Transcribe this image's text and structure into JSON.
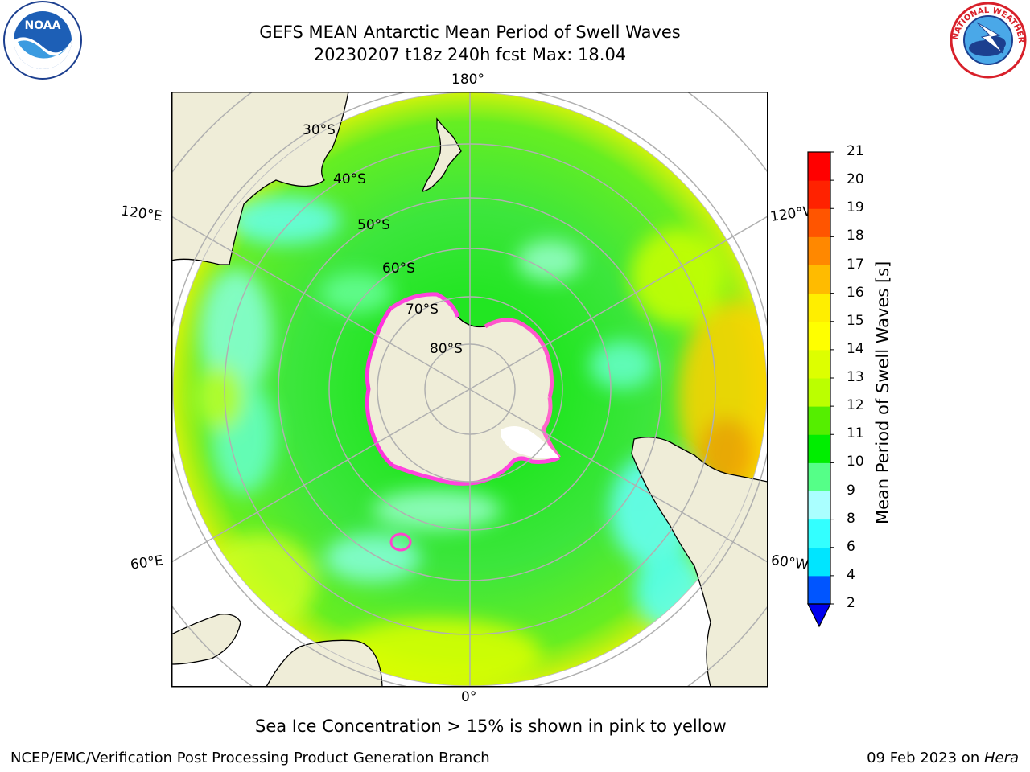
{
  "header": {
    "title_line1": "GEFS MEAN Antarctic Mean Period of Swell Waves",
    "title_line2": "20230207 t18z 240h fcst   Max: 18.04"
  },
  "logos": {
    "left": {
      "name": "noaa-logo",
      "text": "NOAA"
    },
    "right": {
      "name": "nws-logo",
      "text": "NATIONAL WEATHER SERVICE"
    }
  },
  "map": {
    "projection": "south-polar-stereographic",
    "meridian_labels": {
      "top": "180°",
      "bottom": "0°",
      "upper_left": "120°E",
      "upper_right": "120°W",
      "lower_left": "60°E",
      "lower_right": "60°W"
    },
    "latitude_labels": [
      "30°S",
      "40°S",
      "50°S",
      "60°S",
      "70°S",
      "80°S"
    ]
  },
  "colorbar": {
    "label": "Mean Period of Swell Waves [s]",
    "ticks": [
      "2",
      "4",
      "6",
      "8",
      "9",
      "10",
      "11",
      "12",
      "13",
      "14",
      "15",
      "16",
      "17",
      "18",
      "19",
      "20",
      "21"
    ],
    "colors": [
      "#0055ff",
      "#00e5ff",
      "#33ffff",
      "#aaffff",
      "#55ff88",
      "#00ee00",
      "#55ee00",
      "#bbff00",
      "#ddff00",
      "#ffff00",
      "#ffee00",
      "#ffbb00",
      "#ff8800",
      "#ff5500",
      "#ff2200",
      "#ff0000"
    ],
    "extend_color": "#0000ee"
  },
  "annotation": "Sea Ice Concentration > 15% is shown in pink to yellow",
  "footer": {
    "left": "NCEP/EMC/Verification Post Processing Product Generation Branch",
    "right_prefix": "09 Feb 2023 on ",
    "right_host": "Hera"
  }
}
